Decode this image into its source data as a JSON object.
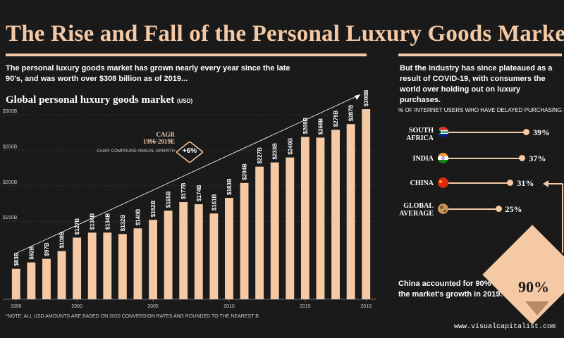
{
  "header": {
    "title": "The Rise and Fall of the  Personal Luxury Goods Market",
    "intro": "The personal luxury goods market has grown nearly every year since the late 90's, and was worth over $308 billion as of 2019...",
    "right_intro": "But the industry has since plateaued as a result of COVID-19, with consumers the world over holding out on luxury purchases."
  },
  "chart": {
    "title_main": "Global personal luxury goods market",
    "title_unit": "(USD)",
    "cagr_title": "CAGR",
    "cagr_period": "1996-2019E",
    "cagr_desc": "CAGR: COMPOUND ANNUAL GROWTH",
    "cagr_value": "+6%"
  },
  "chart_data": {
    "type": "bar",
    "title": "Global personal luxury goods market (USD)",
    "xlabel": "",
    "ylabel": "",
    "categories": [
      "1996",
      "1997",
      "1998",
      "1999",
      "2000",
      "2001",
      "2002",
      "2003",
      "2004",
      "2005",
      "2006",
      "2007",
      "2008",
      "2009",
      "2010",
      "2011",
      "2012",
      "2013",
      "2014",
      "2015",
      "2016",
      "2017",
      "2018",
      "2019"
    ],
    "values": [
      83,
      92,
      97,
      108,
      127,
      134,
      134,
      132,
      140,
      152,
      165,
      177,
      174,
      161,
      183,
      204,
      227,
      233,
      240,
      269,
      268,
      279,
      287,
      308
    ],
    "data_labels": [
      "$83B",
      "$92B",
      "$97B",
      "$108B",
      "$127B",
      "$134B",
      "$134B",
      "$132B",
      "$140B",
      "$152B",
      "$165B",
      "$177B",
      "$174B",
      "$161B",
      "$183B",
      "$204B",
      "$227B",
      "$233B",
      "$240B",
      "$269B",
      "$268B",
      "$279B",
      "$287B",
      "$308B"
    ],
    "x_tick_labels": [
      "1996",
      "2000",
      "2005",
      "2010",
      "2015",
      "2019"
    ],
    "y_ticks": [
      150,
      200,
      250,
      300
    ],
    "y_tick_labels": [
      "$150B",
      "$200B",
      "$250B",
      "$300B"
    ],
    "ylim": [
      40,
      320
    ],
    "grid": true,
    "bar_color": "#f4c9a3"
  },
  "survey": {
    "label": "% OF INTERNET USERS WHO HAVE DELAYED PURCHASING LUXURY",
    "items": [
      {
        "country_line1": "SOUTH",
        "country_line2": "AFRICA",
        "value": 39,
        "pct_label": "39%",
        "flag": "south-africa-flag"
      },
      {
        "country_line1": "INDIA",
        "country_line2": "",
        "value": 37,
        "pct_label": "37%",
        "flag": "india-flag"
      },
      {
        "country_line1": "CHINA",
        "country_line2": "",
        "value": 31,
        "pct_label": "31%",
        "flag": "china-flag"
      },
      {
        "country_line1": "GLOBAL",
        "country_line2": "AVERAGE",
        "value": 25,
        "pct_label": "25%",
        "flag": "globe-icon"
      }
    ]
  },
  "china_note": "China accounted for 90% of the market's growth in 2019.",
  "china_share": "90%",
  "footnote": "*NOTE: ALL USD AMOUNTS ARE BASED ON 2020 CONVERSION RATES AND ROUNDED TO THE NEAREST B",
  "credit": "www.visualcapitalist.com",
  "colors": {
    "accent": "#f4c9a3",
    "background": "#1a1a1a"
  }
}
